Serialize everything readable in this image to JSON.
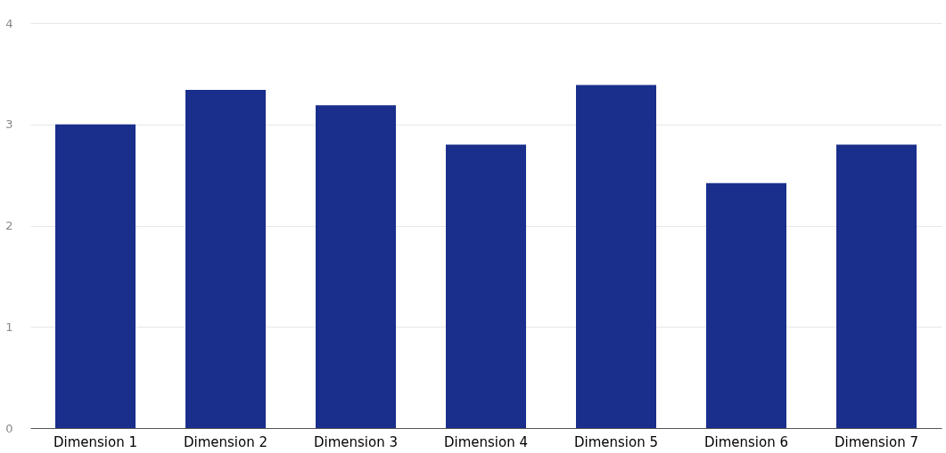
{
  "chart_data": {
    "type": "bar",
    "categories": [
      "Dimension 1",
      "Dimension 2",
      "Dimension 3",
      "Dimension 4",
      "Dimension 5",
      "Dimension 6",
      "Dimension 7"
    ],
    "values": [
      3.0,
      3.34,
      3.19,
      2.8,
      3.39,
      2.42,
      2.8
    ],
    "color": "#1a2e8c",
    "ylim": [
      0,
      4
    ],
    "yticks": [
      0,
      1,
      2,
      3,
      4
    ],
    "grid": "y"
  }
}
